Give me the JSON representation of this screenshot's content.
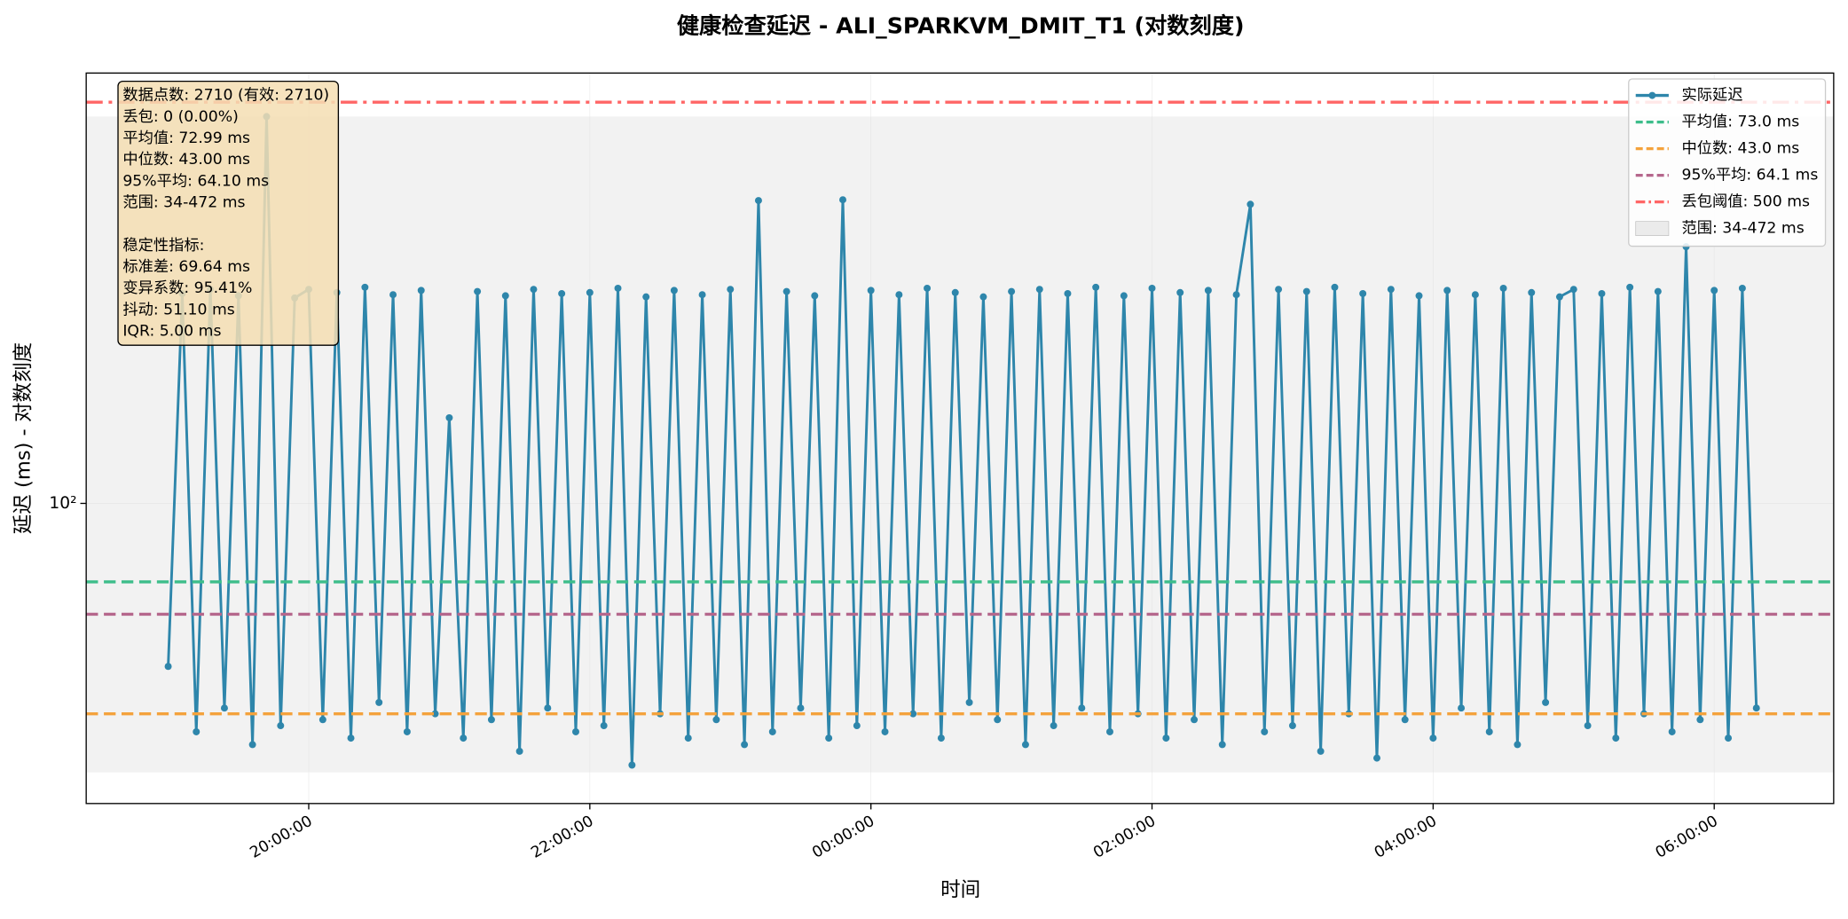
{
  "chart_data": {
    "type": "line",
    "title": "健康检查延迟 - ALI_SPARKVM_DMIT_T1 (对数刻度)",
    "xlabel": "时间",
    "ylabel": "延迟 (ms) - 对数刻度",
    "log_y": true,
    "grid": true,
    "legend": "upper right",
    "xlim": [
      "18:25:00",
      "06:51:00"
    ],
    "xticks": [
      "20:00:00",
      "22:00:00",
      "00:00:00",
      "02:00:00",
      "04:00:00",
      "06:00:00"
    ],
    "ylim": [
      30,
      562
    ],
    "yticks": [
      {
        "value": 100,
        "label": "10²"
      }
    ],
    "x": [
      "19:00:00",
      "19:06:00",
      "19:12:00",
      "19:18:00",
      "19:24:00",
      "19:30:00",
      "19:36:00",
      "19:42:00",
      "19:48:00",
      "19:54:00",
      "20:00:00",
      "20:06:00",
      "20:12:00",
      "20:18:00",
      "20:24:00",
      "20:30:00",
      "20:36:00",
      "20:42:00",
      "20:48:00",
      "20:54:00",
      "21:00:00",
      "21:06:00",
      "21:12:00",
      "21:18:00",
      "21:24:00",
      "21:30:00",
      "21:36:00",
      "21:42:00",
      "21:48:00",
      "21:54:00",
      "22:00:00",
      "22:06:00",
      "22:12:00",
      "22:18:00",
      "22:24:00",
      "22:30:00",
      "22:36:00",
      "22:42:00",
      "22:48:00",
      "22:54:00",
      "23:00:00",
      "23:06:00",
      "23:12:00",
      "23:18:00",
      "23:24:00",
      "23:30:00",
      "23:36:00",
      "23:42:00",
      "23:48:00",
      "23:54:00",
      "00:00:00",
      "00:06:00",
      "00:12:00",
      "00:18:00",
      "00:24:00",
      "00:30:00",
      "00:36:00",
      "00:42:00",
      "00:48:00",
      "00:54:00",
      "01:00:00",
      "01:06:00",
      "01:12:00",
      "01:18:00",
      "01:24:00",
      "01:30:00",
      "01:36:00",
      "01:42:00",
      "01:48:00",
      "01:54:00",
      "02:00:00",
      "02:06:00",
      "02:12:00",
      "02:18:00",
      "02:24:00",
      "02:30:00",
      "02:36:00",
      "02:42:00",
      "02:48:00",
      "02:54:00",
      "03:00:00",
      "03:06:00",
      "03:12:00",
      "03:18:00",
      "03:24:00",
      "03:30:00",
      "03:36:00",
      "03:42:00",
      "03:48:00",
      "03:54:00",
      "04:00:00",
      "04:06:00",
      "04:12:00",
      "04:18:00",
      "04:24:00",
      "04:30:00",
      "04:36:00",
      "04:42:00",
      "04:48:00",
      "04:54:00",
      "05:00:00",
      "05:06:00",
      "05:12:00",
      "05:18:00",
      "05:24:00",
      "05:30:00",
      "05:36:00",
      "05:42:00",
      "05:48:00",
      "05:54:00",
      "06:00:00",
      "06:06:00",
      "06:12:00",
      "06:18:00"
    ],
    "series": [
      {
        "name": "实际延迟",
        "color": "#2e86ab",
        "values": [
          52,
          232,
          40,
          236,
          44,
          230,
          38,
          472,
          41,
          228,
          236,
          42,
          233,
          39,
          238,
          45,
          231,
          40,
          235,
          43,
          141,
          39,
          234,
          42,
          230,
          37,
          236,
          44,
          232,
          40,
          233,
          41,
          237,
          35,
          229,
          43,
          235,
          39,
          231,
          42,
          236,
          38,
          337,
          40,
          234,
          44,
          230,
          39,
          338,
          41,
          235,
          40,
          231,
          43,
          237,
          39,
          233,
          45,
          229,
          42,
          234,
          38,
          236,
          41,
          232,
          44,
          238,
          40,
          230,
          43,
          237,
          39,
          233,
          42,
          235,
          38,
          231,
          332,
          40,
          236,
          41,
          234,
          37,
          238,
          43,
          232,
          36,
          236,
          42,
          230,
          39,
          235,
          44,
          231,
          40,
          237,
          38,
          233,
          45,
          229,
          236,
          41,
          232,
          39,
          238,
          43,
          234,
          40,
          280,
          42,
          235,
          39,
          237,
          44
        ]
      }
    ],
    "reference_lines": [
      {
        "name": "平均值: 73.0 ms",
        "value": 73,
        "color": "#3dbd8a",
        "dash": "dashed"
      },
      {
        "name": "中位数: 43.0 ms",
        "value": 43,
        "color": "#f4a23c",
        "dash": "dashed"
      },
      {
        "name": "95%平均: 64.1 ms",
        "value": 64.1,
        "color": "#b5678c",
        "dash": "dashed"
      },
      {
        "name": "丢包阈值: 500 ms",
        "value": 500,
        "color": "#ff6666",
        "dash": "dashdot"
      }
    ],
    "range_band": {
      "name": "范围: 34-472 ms",
      "range": [
        34,
        472
      ],
      "color": "#d9d9d9"
    },
    "stats_text": [
      [
        "数据点数: 2710 (有效: 2710)",
        "丢包: 0 (0.00%)",
        "平均值: 72.99 ms",
        "中位数: 43.00 ms",
        "95%平均: 64.10 ms",
        "范围: 34-472 ms"
      ],
      [
        "稳定性指标:",
        "标准差: 69.64 ms",
        "变异系数: 95.41%",
        "抖动: 51.10 ms",
        "IQR: 5.00 ms"
      ]
    ]
  }
}
